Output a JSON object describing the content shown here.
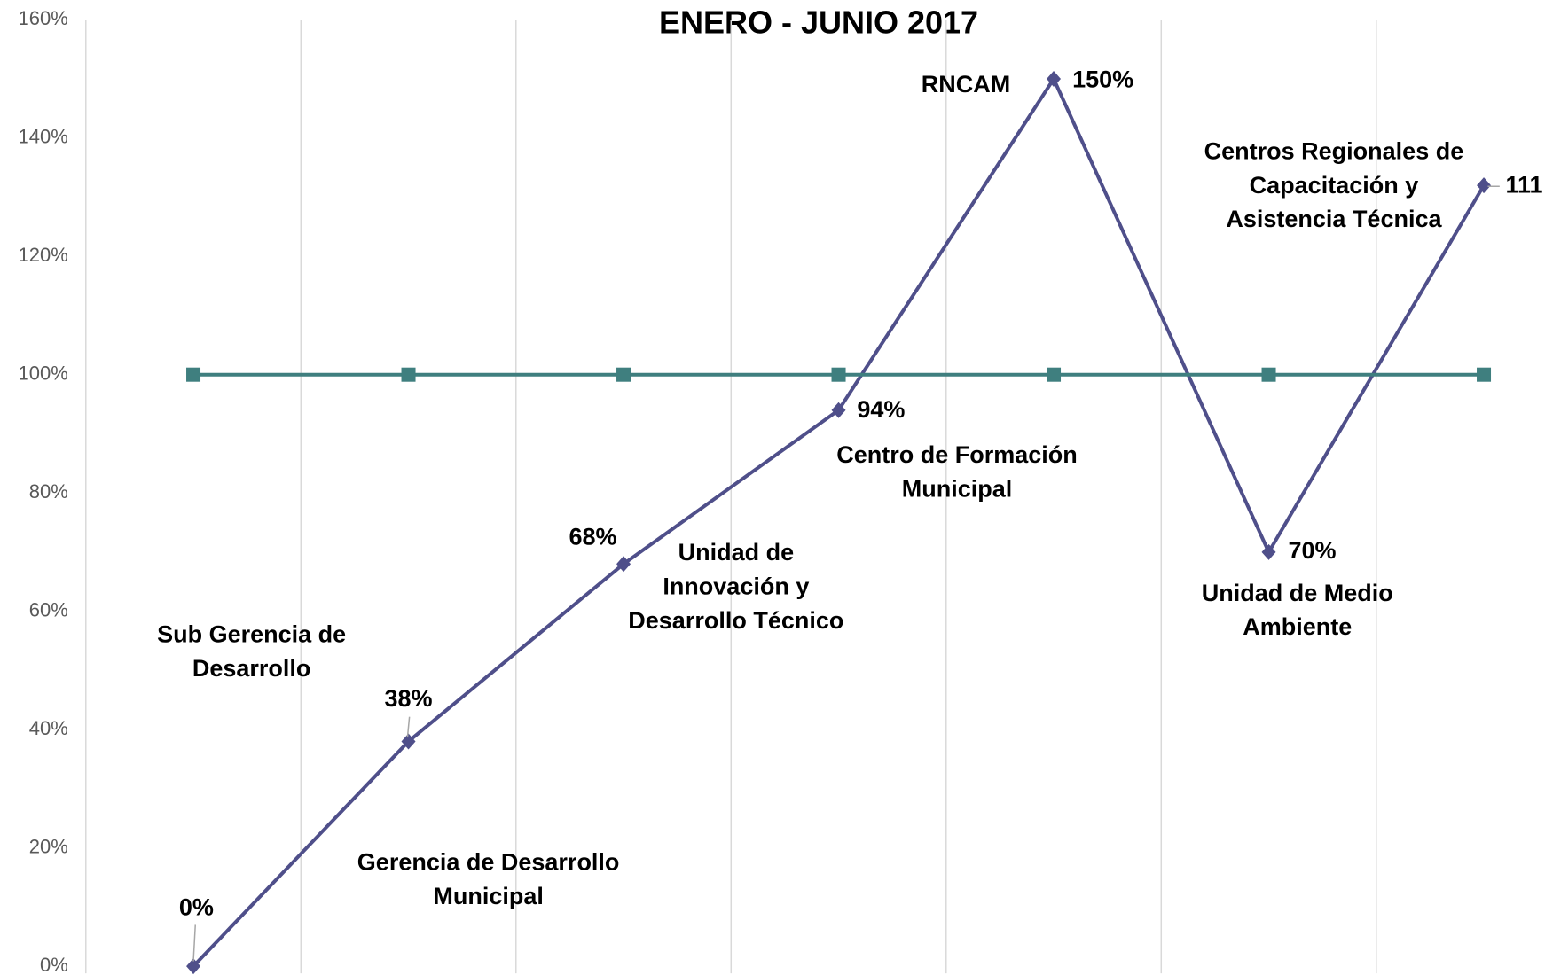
{
  "chart_data": {
    "type": "line",
    "title": "ENERO - JUNIO  2017",
    "categories": [
      "Sub Gerencia de Desarrollo",
      "Gerencia de Desarrollo Municipal",
      "Unidad de Innovación y Desarrollo Técnico",
      "Centro de Formación Municipal",
      "RNCAM",
      "Unidad de Medio Ambiente",
      "Centros Regionales de Capacitación y Asistencia Técnica"
    ],
    "series": [
      {
        "color": "#4f4f8a",
        "marker": "diamond",
        "values": [
          0,
          38,
          68,
          94,
          150,
          70,
          132
        ],
        "value_labels": [
          "0%",
          "38%",
          "68%",
          "94%",
          "150%",
          "70%",
          null
        ]
      },
      {
        "color": "#3f7f7f",
        "marker": "square",
        "values": [
          100,
          100,
          100,
          100,
          100,
          100,
          100
        ]
      }
    ],
    "annotations": [
      "111"
    ],
    "ylim": [
      0,
      160
    ],
    "yticks": [
      {
        "value": 0,
        "label": "0%"
      },
      {
        "value": 20,
        "label": "20%"
      },
      {
        "value": 40,
        "label": "40%"
      },
      {
        "value": 60,
        "label": "60%"
      },
      {
        "value": 80,
        "label": "80%"
      },
      {
        "value": 100,
        "label": "100%"
      },
      {
        "value": 120,
        "label": "120%"
      },
      {
        "value": 140,
        "label": "140%"
      },
      {
        "value": 160,
        "label": "160%"
      }
    ],
    "grid": "vertical"
  }
}
